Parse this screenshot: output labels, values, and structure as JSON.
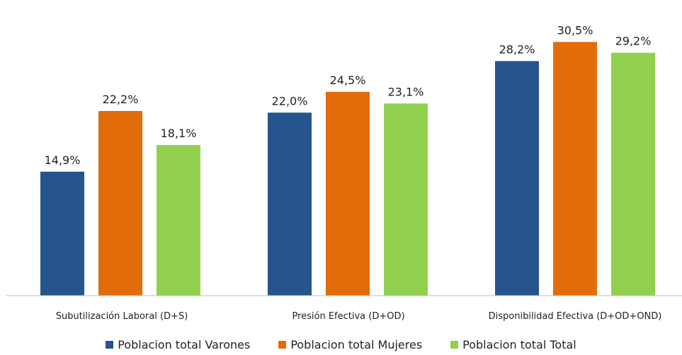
{
  "chart_data": {
    "type": "bar",
    "title": "",
    "xlabel": "",
    "ylabel": "",
    "ylim": [
      0,
      32
    ],
    "grid": false,
    "legend_position": "bottom",
    "categories": [
      "Subutilización Laboral (D+S)",
      "Presión Efectiva (D+OD)",
      "Disponibilidad Efectiva (D+OD+OND)"
    ],
    "series": [
      {
        "name": "Poblacion total Varones",
        "color": "#26548c",
        "values": [
          14.9,
          22.0,
          28.2
        ],
        "labels": [
          "14,9%",
          "22,0%",
          "28,2%"
        ]
      },
      {
        "name": "Poblacion total Mujeres",
        "color": "#e36c0a",
        "values": [
          22.2,
          24.5,
          30.5
        ],
        "labels": [
          "22,2%",
          "24,5%",
          "30,5%"
        ]
      },
      {
        "name": "Poblacion total Total",
        "color": "#92d050",
        "values": [
          18.1,
          23.1,
          29.2
        ],
        "labels": [
          "18,1%",
          "23,1%",
          "29,2%"
        ]
      }
    ]
  }
}
